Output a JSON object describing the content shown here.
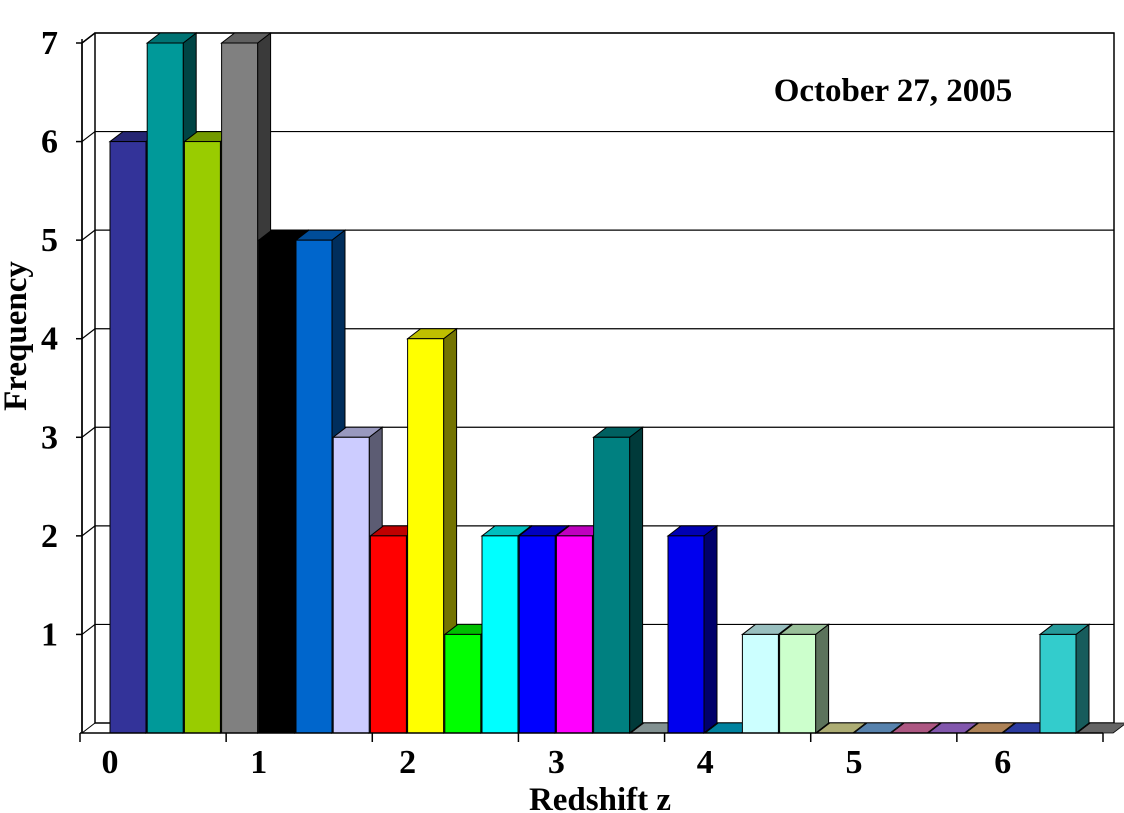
{
  "chart_data": {
    "type": "bar",
    "title": "",
    "annotation": "October 27, 2005",
    "xlabel": "Redshift z",
    "ylabel": "Frequency",
    "ylim": [
      0,
      7
    ],
    "y_ticks": [
      "1",
      "2",
      "3",
      "4",
      "5",
      "6",
      "7"
    ],
    "x_ticks": [
      "0",
      "1",
      "2",
      "3",
      "4",
      "5",
      "6"
    ],
    "bin_width": 0.25,
    "grid": true,
    "legend": "none",
    "bins": [
      {
        "x": 0.0,
        "value": 6,
        "color": "#333399"
      },
      {
        "x": 0.25,
        "value": 7,
        "color": "#009999"
      },
      {
        "x": 0.5,
        "value": 6,
        "color": "#99cc00"
      },
      {
        "x": 0.75,
        "value": 7,
        "color": "#808080"
      },
      {
        "x": 1.0,
        "value": 5,
        "color": "#000000"
      },
      {
        "x": 1.25,
        "value": 5,
        "color": "#0066cc"
      },
      {
        "x": 1.5,
        "value": 3,
        "color": "#ccccff"
      },
      {
        "x": 1.75,
        "value": 2,
        "color": "#ff0000"
      },
      {
        "x": 2.0,
        "value": 4,
        "color": "#ffff00"
      },
      {
        "x": 2.25,
        "value": 1,
        "color": "#00ff00"
      },
      {
        "x": 2.5,
        "value": 2,
        "color": "#00ffff"
      },
      {
        "x": 2.75,
        "value": 2,
        "color": "#0000ff"
      },
      {
        "x": 3.0,
        "value": 2,
        "color": "#ff00ff"
      },
      {
        "x": 3.25,
        "value": 3,
        "color": "#008080"
      },
      {
        "x": 3.5,
        "value": 0,
        "color": "#99aaaa"
      },
      {
        "x": 3.75,
        "value": 2,
        "color": "#0000ee"
      },
      {
        "x": 4.0,
        "value": 0,
        "color": "#0099bb"
      },
      {
        "x": 4.25,
        "value": 1,
        "color": "#ccffff"
      },
      {
        "x": 4.5,
        "value": 1,
        "color": "#ccffcc"
      },
      {
        "x": 4.75,
        "value": 0,
        "color": "#cccc88"
      },
      {
        "x": 5.0,
        "value": 0,
        "color": "#6699cc"
      },
      {
        "x": 5.25,
        "value": 0,
        "color": "#cc6699"
      },
      {
        "x": 5.5,
        "value": 0,
        "color": "#9966cc"
      },
      {
        "x": 5.75,
        "value": 0,
        "color": "#cc9966"
      },
      {
        "x": 6.0,
        "value": 0,
        "color": "#3344bb"
      },
      {
        "x": 6.25,
        "value": 1,
        "color": "#33cccc"
      },
      {
        "x": 6.5,
        "value": 0,
        "color": "#777777"
      }
    ]
  }
}
